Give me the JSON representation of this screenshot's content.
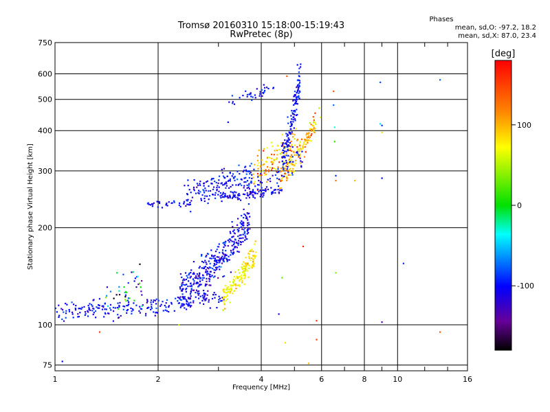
{
  "chart_data": {
    "type": "scatter",
    "title": "Tromsø 20160310 15:18:00-15:19:43",
    "subtitle": "RwPretec (8p)",
    "xlabel": "Frequency [MHz]",
    "ylabel": "Stationary phase Virtual Height [km]",
    "x_scale": "log",
    "y_scale": "log",
    "xlim": [
      1,
      16
    ],
    "ylim": [
      72,
      750
    ],
    "x_ticks": [
      1,
      2,
      4,
      6,
      8,
      10,
      16
    ],
    "x_tick_labels": [
      "1",
      "2",
      "4",
      "6",
      "8",
      "10",
      "16"
    ],
    "x_minor_ticks": [
      3,
      5,
      7,
      9,
      12,
      14
    ],
    "y_ticks": [
      75,
      100,
      200,
      300,
      400,
      500,
      600,
      750
    ],
    "y_tick_labels": [
      "75",
      "100",
      "200",
      "300",
      "400",
      "500",
      "600",
      "750"
    ],
    "grid": true,
    "phases_info": {
      "heading": "Phases",
      "line_o": "mean, sd,O: -97.2, 18.2",
      "line_x": "mean, sd,X:  87.0, 23.4"
    },
    "colorbar": {
      "label": "[deg]",
      "range": [
        -180,
        180
      ],
      "ticks": [
        100,
        0,
        -100
      ],
      "tick_labels": [
        "100",
        "0",
        "-100"
      ]
    },
    "groups": [
      {
        "x_start": 1.0,
        "x_end": 2.05,
        "h_start": 110,
        "h_end": 115,
        "spread": 0.035,
        "phase": -100,
        "phase_sd": 14,
        "count": 140
      },
      {
        "x_start": 1.4,
        "x_end": 1.8,
        "h_start": 118,
        "h_end": 135,
        "spread": 0.07,
        "phase": -80,
        "phase_sd": 70,
        "count": 45
      },
      {
        "x_start": 2.05,
        "x_end": 3.1,
        "h_start": 115,
        "h_end": 122,
        "spread": 0.03,
        "phase": -100,
        "phase_sd": 10,
        "count": 70
      },
      {
        "x_start": 2.3,
        "x_end": 3.7,
        "h_start": 125,
        "h_end": 210,
        "spread": 0.07,
        "phase": -105,
        "phase_sd": 16,
        "count": 380
      },
      {
        "x_start": 3.1,
        "x_end": 3.85,
        "h_start": 122,
        "h_end": 170,
        "spread": 0.04,
        "phase": 100,
        "phase_sd": 14,
        "count": 160
      },
      {
        "x_start": 1.85,
        "x_end": 2.4,
        "h_start": 237,
        "h_end": 238,
        "spread": 0.01,
        "phase": -100,
        "phase_sd": 10,
        "count": 30
      },
      {
        "x_start": 2.4,
        "x_end": 3.8,
        "h_start": 255,
        "h_end": 290,
        "spread": 0.05,
        "phase": -100,
        "phase_sd": 14,
        "count": 170
      },
      {
        "x_start": 3.0,
        "x_end": 4.6,
        "h_start": 250,
        "h_end": 260,
        "spread": 0.015,
        "phase": -105,
        "phase_sd": 10,
        "count": 90
      },
      {
        "x_start": 3.8,
        "x_end": 5.1,
        "h_start": 295,
        "h_end": 380,
        "spread": 0.06,
        "phase": 120,
        "phase_sd": 25,
        "count": 110
      },
      {
        "x_start": 4.5,
        "x_end": 5.8,
        "h_start": 285,
        "h_end": 430,
        "spread": 0.04,
        "phase": 120,
        "phase_sd": 25,
        "count": 140
      },
      {
        "x_start": 3.7,
        "x_end": 5.3,
        "h_start": 262,
        "h_end": 340,
        "spread": 0.04,
        "phase": -100,
        "phase_sd": 14,
        "count": 60
      },
      {
        "x_start": 4.6,
        "x_end": 5.2,
        "h_start": 330,
        "h_end": 600,
        "spread": 0.06,
        "phase": -100,
        "phase_sd": 14,
        "count": 140
      },
      {
        "x_start": 3.2,
        "x_end": 4.35,
        "h_start": 495,
        "h_end": 550,
        "spread": 0.02,
        "phase": -100,
        "phase_sd": 12,
        "count": 35
      }
    ],
    "scattered_points": [
      {
        "x": 1.05,
        "y": 77,
        "phase": -100
      },
      {
        "x": 1.35,
        "y": 95,
        "phase": 160
      },
      {
        "x": 2.3,
        "y": 100,
        "phase": 80
      },
      {
        "x": 3.2,
        "y": 425,
        "phase": -100
      },
      {
        "x": 4.5,
        "y": 108,
        "phase": -110
      },
      {
        "x": 4.6,
        "y": 140,
        "phase": 40
      },
      {
        "x": 4.7,
        "y": 88,
        "phase": 110
      },
      {
        "x": 4.75,
        "y": 590,
        "phase": 150
      },
      {
        "x": 5.1,
        "y": 640,
        "phase": -100
      },
      {
        "x": 5.3,
        "y": 175,
        "phase": 170
      },
      {
        "x": 5.5,
        "y": 76,
        "phase": 120
      },
      {
        "x": 5.8,
        "y": 90,
        "phase": 160
      },
      {
        "x": 5.8,
        "y": 103,
        "phase": 165
      },
      {
        "x": 5.9,
        "y": 470,
        "phase": 70
      },
      {
        "x": 5.95,
        "y": 440,
        "phase": 95
      },
      {
        "x": 6.5,
        "y": 530,
        "phase": 150
      },
      {
        "x": 6.5,
        "y": 480,
        "phase": -70
      },
      {
        "x": 6.55,
        "y": 410,
        "phase": -30
      },
      {
        "x": 6.55,
        "y": 370,
        "phase": 20
      },
      {
        "x": 6.6,
        "y": 290,
        "phase": -90
      },
      {
        "x": 6.6,
        "y": 280,
        "phase": 140
      },
      {
        "x": 6.6,
        "y": 145,
        "phase": 50
      },
      {
        "x": 7.5,
        "y": 280,
        "phase": 120
      },
      {
        "x": 8.9,
        "y": 565,
        "phase": -80
      },
      {
        "x": 8.9,
        "y": 420,
        "phase": -40
      },
      {
        "x": 9.0,
        "y": 415,
        "phase": -90
      },
      {
        "x": 9.0,
        "y": 395,
        "phase": 110
      },
      {
        "x": 9.0,
        "y": 285,
        "phase": -100
      },
      {
        "x": 9.0,
        "y": 102,
        "phase": -130
      },
      {
        "x": 10.4,
        "y": 155,
        "phase": -90
      },
      {
        "x": 13.3,
        "y": 575,
        "phase": -75
      },
      {
        "x": 13.3,
        "y": 95,
        "phase": 150
      }
    ]
  }
}
